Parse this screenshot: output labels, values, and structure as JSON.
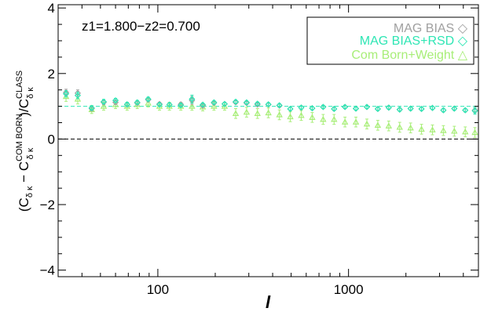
{
  "chart_data": {
    "type": "scatter",
    "annotation": "z1=1.800−z2=0.700",
    "xlabel": "l",
    "ylabel": {
      "prefix": "(C",
      "sub1": "δ κ",
      "middle": " − C",
      "sup2": "COM BORN",
      "sub2": "δ κ",
      "slash": ")/C",
      "sup3": "CLASS",
      "sub3": "δ κ"
    },
    "x_scale": "log",
    "xlim": [
      30,
      4800
    ],
    "ylim": [
      -4.2,
      4.1
    ],
    "x_ticks": [
      {
        "value": 100,
        "label": "100"
      },
      {
        "value": 1000,
        "label": "1000"
      }
    ],
    "y_ticks": [
      {
        "value": 4,
        "label": "4"
      },
      {
        "value": 2,
        "label": "2"
      },
      {
        "value": 0,
        "label": "0"
      },
      {
        "value": -2,
        "label": "−2"
      },
      {
        "value": -4,
        "label": "−4"
      }
    ],
    "reference_lines": [
      {
        "y": 0,
        "style": "dashed",
        "color": "#000000"
      },
      {
        "y": 1.0,
        "style": "dashed",
        "color": "#2ee6b4"
      }
    ],
    "legend_position": "top-right",
    "x": [
      33,
      38,
      45,
      52,
      60,
      69,
      78,
      89,
      102,
      115,
      132,
      151,
      172,
      197,
      224,
      256,
      292,
      333,
      380,
      434,
      495,
      565,
      645,
      736,
      840,
      958,
      1093,
      1248,
      1424,
      1625,
      1854,
      2116,
      2414,
      2755,
      3144,
      3587,
      4094,
      4600
    ],
    "series": [
      {
        "name": "MAG BIAS",
        "symbol": "◇",
        "marker": "diamond",
        "color": "#a0a0a0",
        "values": [
          1.42,
          1.4,
          0.93,
          1.12,
          1.12,
          1.05,
          1.1,
          1.2,
          1.07,
          1.05,
          1.06,
          1.18,
          1.02,
          1.1,
          1.07,
          1.12,
          1.1,
          1.05,
          1.05,
          1.02,
          0.92,
          0.96,
          0.94,
          0.98,
          0.92,
          0.98,
          0.93,
          0.98,
          0.92,
          0.96,
          0.9,
          0.93,
          0.92,
          0.95,
          0.88,
          0.93,
          0.88,
          0.88
        ],
        "errors": [
          0.1,
          0.1,
          0.07,
          0.07,
          0.06,
          0.06,
          0.06,
          0.06,
          0.05,
          0.05,
          0.05,
          0.12,
          0.05,
          0.05,
          0.05,
          0.05,
          0.05,
          0.05,
          0.05,
          0.05,
          0.05,
          0.05,
          0.05,
          0.05,
          0.05,
          0.05,
          0.05,
          0.05,
          0.05,
          0.05,
          0.05,
          0.05,
          0.05,
          0.05,
          0.05,
          0.05,
          0.05,
          0.08
        ]
      },
      {
        "name": "MAG BIAS+RSD",
        "symbol": "◇",
        "marker": "diamond",
        "color": "#2ee6b4",
        "values": [
          1.38,
          1.33,
          0.95,
          1.14,
          1.18,
          1.06,
          1.12,
          1.22,
          1.05,
          1.05,
          1.03,
          1.22,
          1.05,
          1.12,
          1.07,
          1.14,
          1.12,
          1.08,
          1.06,
          1.03,
          0.92,
          0.96,
          0.94,
          0.98,
          0.92,
          0.98,
          0.93,
          0.98,
          0.92,
          0.96,
          0.9,
          0.93,
          0.92,
          0.95,
          0.88,
          0.93,
          0.88,
          0.86
        ],
        "errors": [
          0.1,
          0.1,
          0.07,
          0.07,
          0.06,
          0.06,
          0.06,
          0.06,
          0.05,
          0.05,
          0.05,
          0.12,
          0.05,
          0.05,
          0.05,
          0.05,
          0.05,
          0.05,
          0.05,
          0.05,
          0.05,
          0.05,
          0.05,
          0.05,
          0.05,
          0.05,
          0.05,
          0.05,
          0.05,
          0.05,
          0.05,
          0.05,
          0.05,
          0.05,
          0.05,
          0.05,
          0.05,
          0.1
        ]
      },
      {
        "name": "Com Born+Weight",
        "symbol": "△",
        "marker": "triangle",
        "color": "#a8ee78",
        "values": [
          1.3,
          1.22,
          0.9,
          1.0,
          1.05,
          1.0,
          1.05,
          1.1,
          1.0,
          1.0,
          1.0,
          1.0,
          0.98,
          1.0,
          1.0,
          0.78,
          0.82,
          0.78,
          0.8,
          0.74,
          0.68,
          0.72,
          0.66,
          0.6,
          0.6,
          0.52,
          0.52,
          0.46,
          0.42,
          0.4,
          0.36,
          0.34,
          0.3,
          0.28,
          0.26,
          0.24,
          0.22,
          0.2
        ],
        "errors": [
          0.15,
          0.15,
          0.12,
          0.12,
          0.12,
          0.12,
          0.12,
          0.12,
          0.12,
          0.12,
          0.12,
          0.12,
          0.12,
          0.12,
          0.12,
          0.15,
          0.15,
          0.15,
          0.15,
          0.15,
          0.15,
          0.15,
          0.15,
          0.15,
          0.15,
          0.15,
          0.15,
          0.15,
          0.15,
          0.15,
          0.15,
          0.15,
          0.15,
          0.15,
          0.15,
          0.15,
          0.15,
          0.15
        ]
      }
    ]
  }
}
